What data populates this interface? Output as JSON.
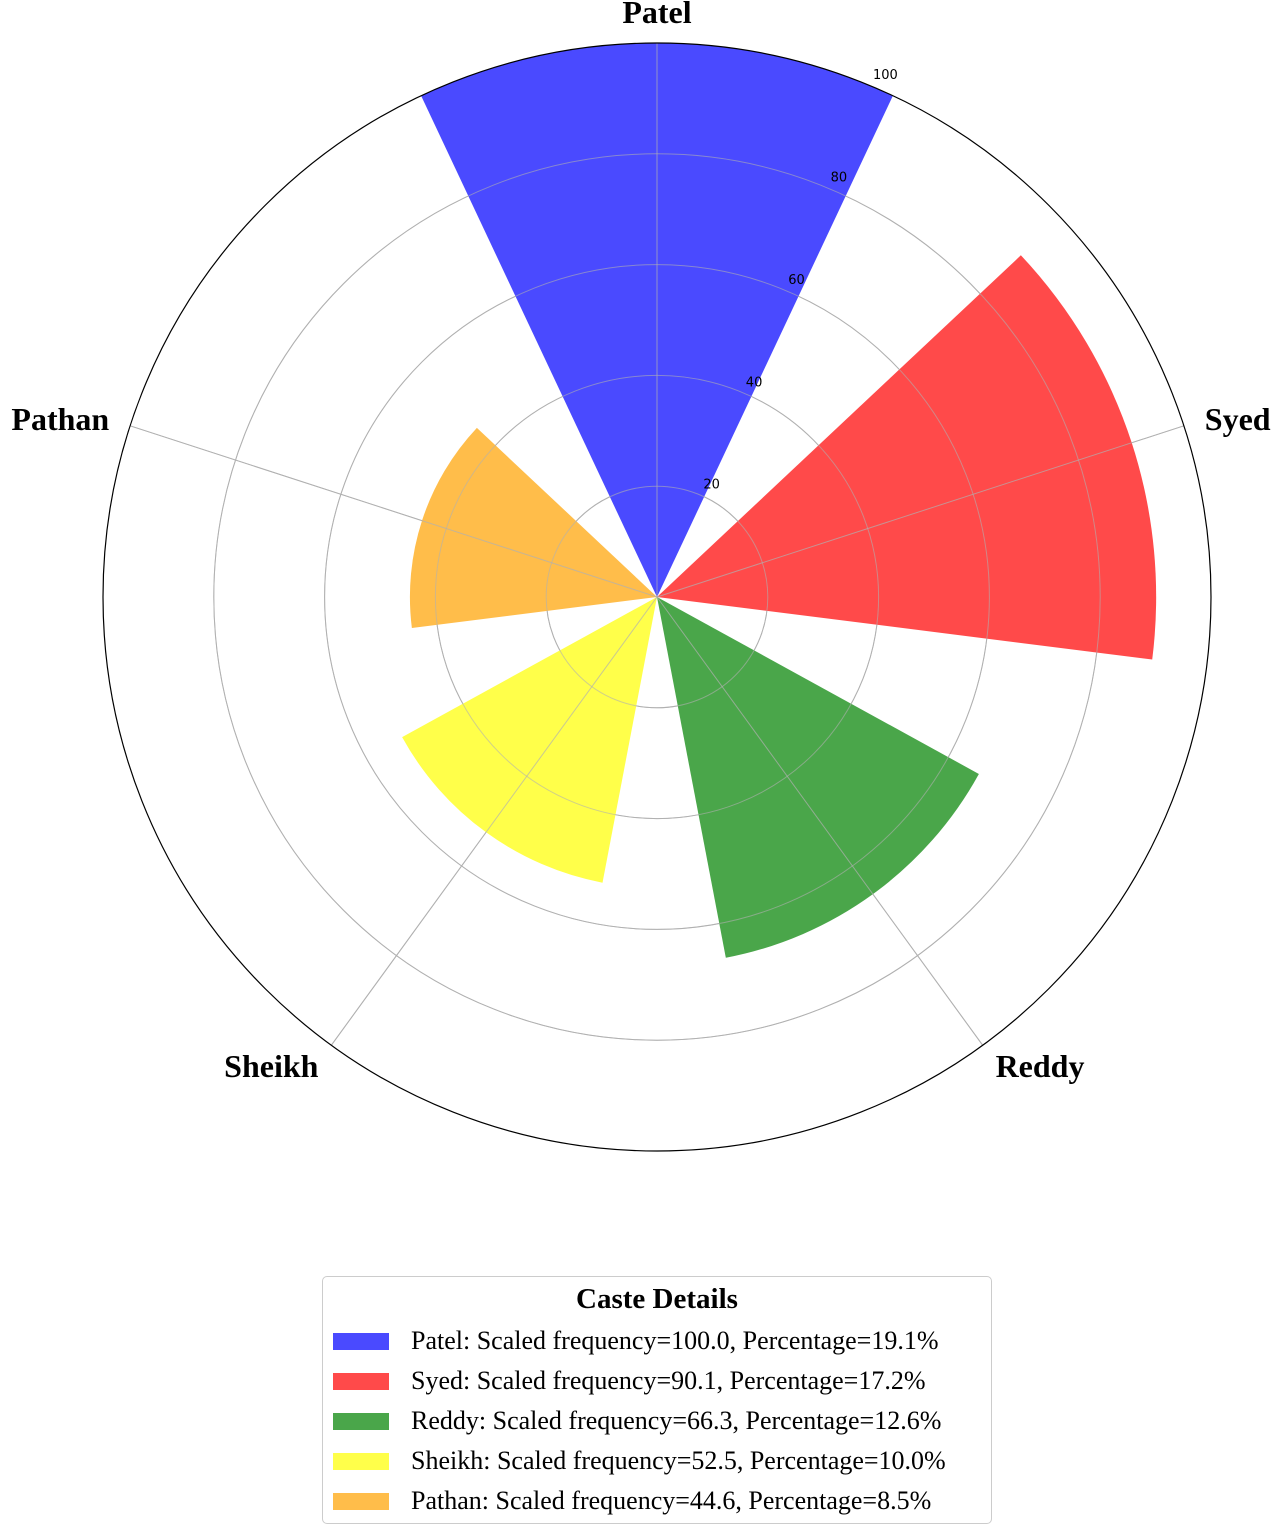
{
  "chart_data": {
    "type": "bar",
    "polar": true,
    "categories": [
      "Patel",
      "Syed",
      "Reddy",
      "Sheikh",
      "Pathan"
    ],
    "values": [
      100.0,
      90.1,
      66.3,
      52.5,
      44.6
    ],
    "percentages": [
      19.1,
      17.2,
      12.6,
      10.0,
      8.5
    ],
    "colors": [
      "#4a4aff",
      "#ff4a4a",
      "#4aa64a",
      "#ffff4a",
      "#ffbd4a"
    ],
    "rlim": [
      0,
      100
    ],
    "rticks": [
      20,
      40,
      60,
      80,
      100
    ],
    "grid": true,
    "legend_placement": "bottom-center",
    "legend": {
      "title": "Caste Details",
      "entries": [
        "Patel: Scaled frequency=100.0, Percentage=19.1%",
        "Syed: Scaled frequency=90.1, Percentage=17.2%",
        "Reddy: Scaled frequency=66.3, Percentage=12.6%",
        "Sheikh: Scaled frequency=52.5, Percentage=10.0%",
        "Pathan: Scaled frequency=44.6, Percentage=8.5%"
      ]
    }
  }
}
